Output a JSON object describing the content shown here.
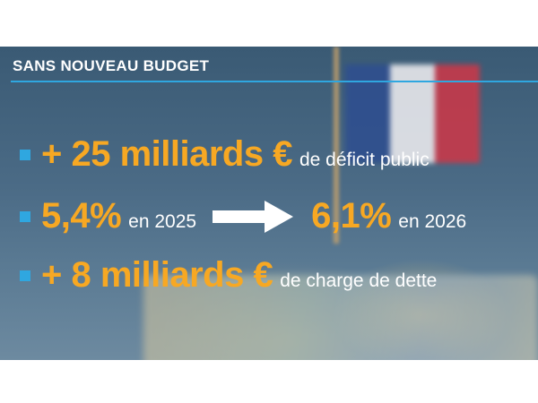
{
  "header": {
    "title": "SANS NOUVEAU BUDGET"
  },
  "rows": [
    {
      "big": "+ 25 milliards €",
      "small": "de déficit public"
    },
    {
      "big": "5,4%",
      "small": "en 2025",
      "big2": "6,1%",
      "small2": "en 2026"
    },
    {
      "big": "+ 8 milliards €",
      "small": "de charge de dette"
    }
  ],
  "colors": {
    "accent_orange": "#f7a823",
    "accent_blue": "#2fa7e0",
    "text_white": "#ffffff"
  },
  "icons": {
    "bullet": "square-bullet-icon",
    "arrow": "right-arrow-icon"
  }
}
